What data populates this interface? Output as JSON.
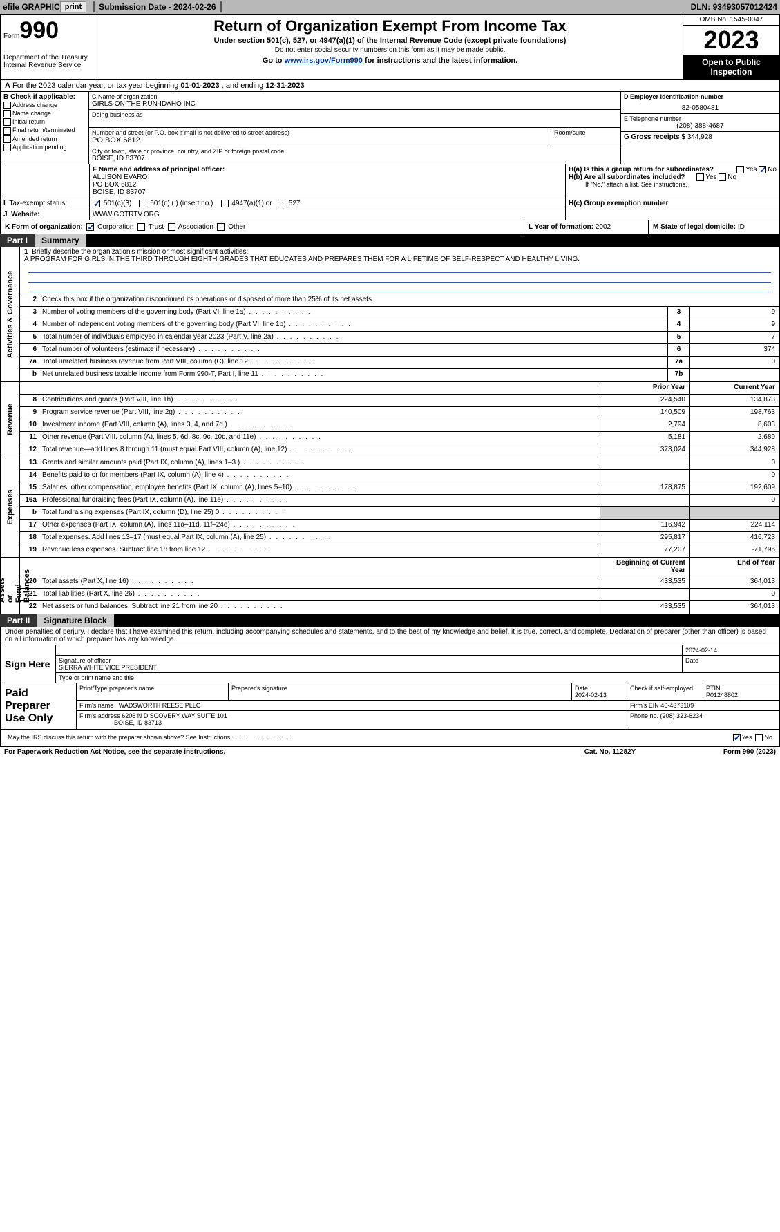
{
  "topbar": {
    "efile": "efile GRAPHIC",
    "print": "print",
    "sub_date_label": "Submission Date - ",
    "sub_date": "2024-02-26",
    "dln_label": "DLN: ",
    "dln": "93493057012424"
  },
  "header": {
    "form_label": "Form",
    "form_no": "990",
    "dept": "Department of the Treasury\nInternal Revenue Service",
    "title": "Return of Organization Exempt From Income Tax",
    "sub": "Under section 501(c), 527, or 4947(a)(1) of the Internal Revenue Code (except private foundations)",
    "sub2": "Do not enter social security numbers on this form as it may be made public.",
    "goto_pre": "Go to ",
    "goto_link": "www.irs.gov/Form990",
    "goto_post": " for instructions and the latest information.",
    "omb": "OMB No. 1545-0047",
    "year": "2023",
    "inspect": "Open to Public Inspection"
  },
  "line_a": {
    "pre": "For the 2023 calendar year, or tax year beginning ",
    "begin": "01-01-2023",
    "mid": " , and ending ",
    "end": "12-31-2023"
  },
  "box_b": {
    "label": "B Check if applicable:",
    "opts": [
      "Address change",
      "Name change",
      "Initial return",
      "Final return/terminated",
      "Amended return",
      "Application pending"
    ]
  },
  "box_c": {
    "name_lbl": "C Name of organization",
    "name": "GIRLS ON THE RUN-IDAHO INC",
    "dba_lbl": "Doing business as",
    "street_lbl": "Number and street (or P.O. box if mail is not delivered to street address)",
    "street": "PO BOX 6812",
    "suite_lbl": "Room/suite",
    "city_lbl": "City or town, state or province, country, and ZIP or foreign postal code",
    "city": "BOISE, ID  83707"
  },
  "box_d": {
    "ein_lbl": "D Employer identification number",
    "ein": "82-0580481",
    "tel_lbl": "E Telephone number",
    "tel": "(208) 388-4687",
    "gross_lbl": "G Gross receipts $ ",
    "gross": "344,928"
  },
  "box_f": {
    "lbl": "F  Name and address of principal officer:",
    "name": "ALLISON EVARO",
    "addr1": "PO BOX 6812",
    "addr2": "BOISE, ID  83707"
  },
  "box_h": {
    "ha": "H(a)  Is this a group return for subordinates?",
    "hb": "H(b)  Are all subordinates included?",
    "hb_note": "If \"No,\" attach a list. See instructions.",
    "hc": "H(c)  Group exemption number ",
    "yes": "Yes",
    "no": "No"
  },
  "row_i": {
    "lbl": "Tax-exempt status:",
    "o1": "501(c)(3)",
    "o2": "501(c) (   ) (insert no.)",
    "o3": "4947(a)(1) or",
    "o4": "527"
  },
  "row_j": {
    "lbl": "Website: ",
    "val": "WWW.GOTRTV.ORG"
  },
  "row_k": {
    "lbl": "K Form of organization:",
    "o1": "Corporation",
    "o2": "Trust",
    "o3": "Association",
    "o4": "Other",
    "l_lbl": "L Year of formation: ",
    "l_val": "2002",
    "m_lbl": "M State of legal domicile: ",
    "m_val": "ID"
  },
  "part1": {
    "tab": "Part I",
    "title": "Summary",
    "side_ag": "Activities & Governance",
    "side_rev": "Revenue",
    "side_exp": "Expenses",
    "side_na": "Net Assets or\nFund Balances",
    "l1_lbl": "Briefly describe the organization's mission or most significant activities:",
    "l1_val": "A PROGRAM FOR GIRLS IN THE THIRD THROUGH EIGHTH GRADES THAT EDUCATES AND PREPARES THEM FOR A LIFETIME OF SELF-RESPECT AND HEALTHY LIVING.",
    "l2": "Check this box      if the organization discontinued its operations or disposed of more than 25% of its net assets.",
    "rows_ag": [
      {
        "n": "3",
        "t": "Number of voting members of the governing body (Part VI, line 1a)",
        "b": "3",
        "v": "9"
      },
      {
        "n": "4",
        "t": "Number of independent voting members of the governing body (Part VI, line 1b)",
        "b": "4",
        "v": "9"
      },
      {
        "n": "5",
        "t": "Total number of individuals employed in calendar year 2023 (Part V, line 2a)",
        "b": "5",
        "v": "7"
      },
      {
        "n": "6",
        "t": "Total number of volunteers (estimate if necessary)",
        "b": "6",
        "v": "374"
      },
      {
        "n": "7a",
        "t": "Total unrelated business revenue from Part VIII, column (C), line 12",
        "b": "7a",
        "v": "0"
      },
      {
        "n": "b",
        "t": "Net unrelated business taxable income from Form 990-T, Part I, line 11",
        "b": "7b",
        "v": ""
      }
    ],
    "hdr_prior": "Prior Year",
    "hdr_curr": "Current Year",
    "rows_rev": [
      {
        "n": "8",
        "t": "Contributions and grants (Part VIII, line 1h)",
        "p": "224,540",
        "c": "134,873"
      },
      {
        "n": "9",
        "t": "Program service revenue (Part VIII, line 2g)",
        "p": "140,509",
        "c": "198,763"
      },
      {
        "n": "10",
        "t": "Investment income (Part VIII, column (A), lines 3, 4, and 7d )",
        "p": "2,794",
        "c": "8,603"
      },
      {
        "n": "11",
        "t": "Other revenue (Part VIII, column (A), lines 5, 6d, 8c, 9c, 10c, and 11e)",
        "p": "5,181",
        "c": "2,689"
      },
      {
        "n": "12",
        "t": "Total revenue—add lines 8 through 11 (must equal Part VIII, column (A), line 12)",
        "p": "373,024",
        "c": "344,928"
      }
    ],
    "rows_exp": [
      {
        "n": "13",
        "t": "Grants and similar amounts paid (Part IX, column (A), lines 1–3 )",
        "p": "",
        "c": "0"
      },
      {
        "n": "14",
        "t": "Benefits paid to or for members (Part IX, column (A), line 4)",
        "p": "",
        "c": "0"
      },
      {
        "n": "15",
        "t": "Salaries, other compensation, employee benefits (Part IX, column (A), lines 5–10)",
        "p": "178,875",
        "c": "192,609"
      },
      {
        "n": "16a",
        "t": "Professional fundraising fees (Part IX, column (A), line 11e)",
        "p": "",
        "c": "0"
      },
      {
        "n": "b",
        "t": "Total fundraising expenses (Part IX, column (D), line 25) 0",
        "p": "shade",
        "c": "shade"
      },
      {
        "n": "17",
        "t": "Other expenses (Part IX, column (A), lines 11a–11d, 11f–24e)",
        "p": "116,942",
        "c": "224,114"
      },
      {
        "n": "18",
        "t": "Total expenses. Add lines 13–17 (must equal Part IX, column (A), line 25)",
        "p": "295,817",
        "c": "416,723"
      },
      {
        "n": "19",
        "t": "Revenue less expenses. Subtract line 18 from line 12",
        "p": "77,207",
        "c": "-71,795"
      }
    ],
    "hdr_beg": "Beginning of Current Year",
    "hdr_end": "End of Year",
    "rows_na": [
      {
        "n": "20",
        "t": "Total assets (Part X, line 16)",
        "p": "433,535",
        "c": "364,013"
      },
      {
        "n": "21",
        "t": "Total liabilities (Part X, line 26)",
        "p": "",
        "c": "0"
      },
      {
        "n": "22",
        "t": "Net assets or fund balances. Subtract line 21 from line 20",
        "p": "433,535",
        "c": "364,013"
      }
    ]
  },
  "part2": {
    "tab": "Part II",
    "title": "Signature Block",
    "intro": "Under penalties of perjury, I declare that I have examined this return, including accompanying schedules and statements, and to the best of my knowledge and belief, it is true, correct, and complete. Declaration of preparer (other than officer) is based on all information of which preparer has any knowledge.",
    "sign_here": "Sign Here",
    "sig_date": "2024-02-14",
    "sig_lbl": "Signature of officer",
    "sig_name": "SIERRA WHITE  VICE PRESIDENT",
    "sig_name_lbl": "Type or print name and title",
    "date_lbl": "Date",
    "paid": "Paid Preparer Use Only",
    "prep_name_lbl": "Print/Type preparer's name",
    "prep_sig_lbl": "Preparer's signature",
    "prep_date_lbl": "Date",
    "prep_date": "2024-02-13",
    "prep_self_lbl": "Check       if self-employed",
    "ptin_lbl": "PTIN",
    "ptin": "P01248802",
    "firm_name_lbl": "Firm's name  ",
    "firm_name": "WADSWORTH REESE PLLC",
    "firm_ein_lbl": "Firm's EIN  ",
    "firm_ein": "46-4373109",
    "firm_addr_lbl": "Firm's address ",
    "firm_addr1": "6206 N DISCOVERY WAY SUITE 101",
    "firm_addr2": "BOISE, ID  83713",
    "phone_lbl": "Phone no. ",
    "phone": "(208) 323-6234",
    "discuss": "May the IRS discuss this return with the preparer shown above? See Instructions.",
    "yes": "Yes",
    "no": "No"
  },
  "footer": {
    "pra": "For Paperwork Reduction Act Notice, see the separate instructions.",
    "cat": "Cat. No. 11282Y",
    "form": "Form 990 (2023)"
  }
}
